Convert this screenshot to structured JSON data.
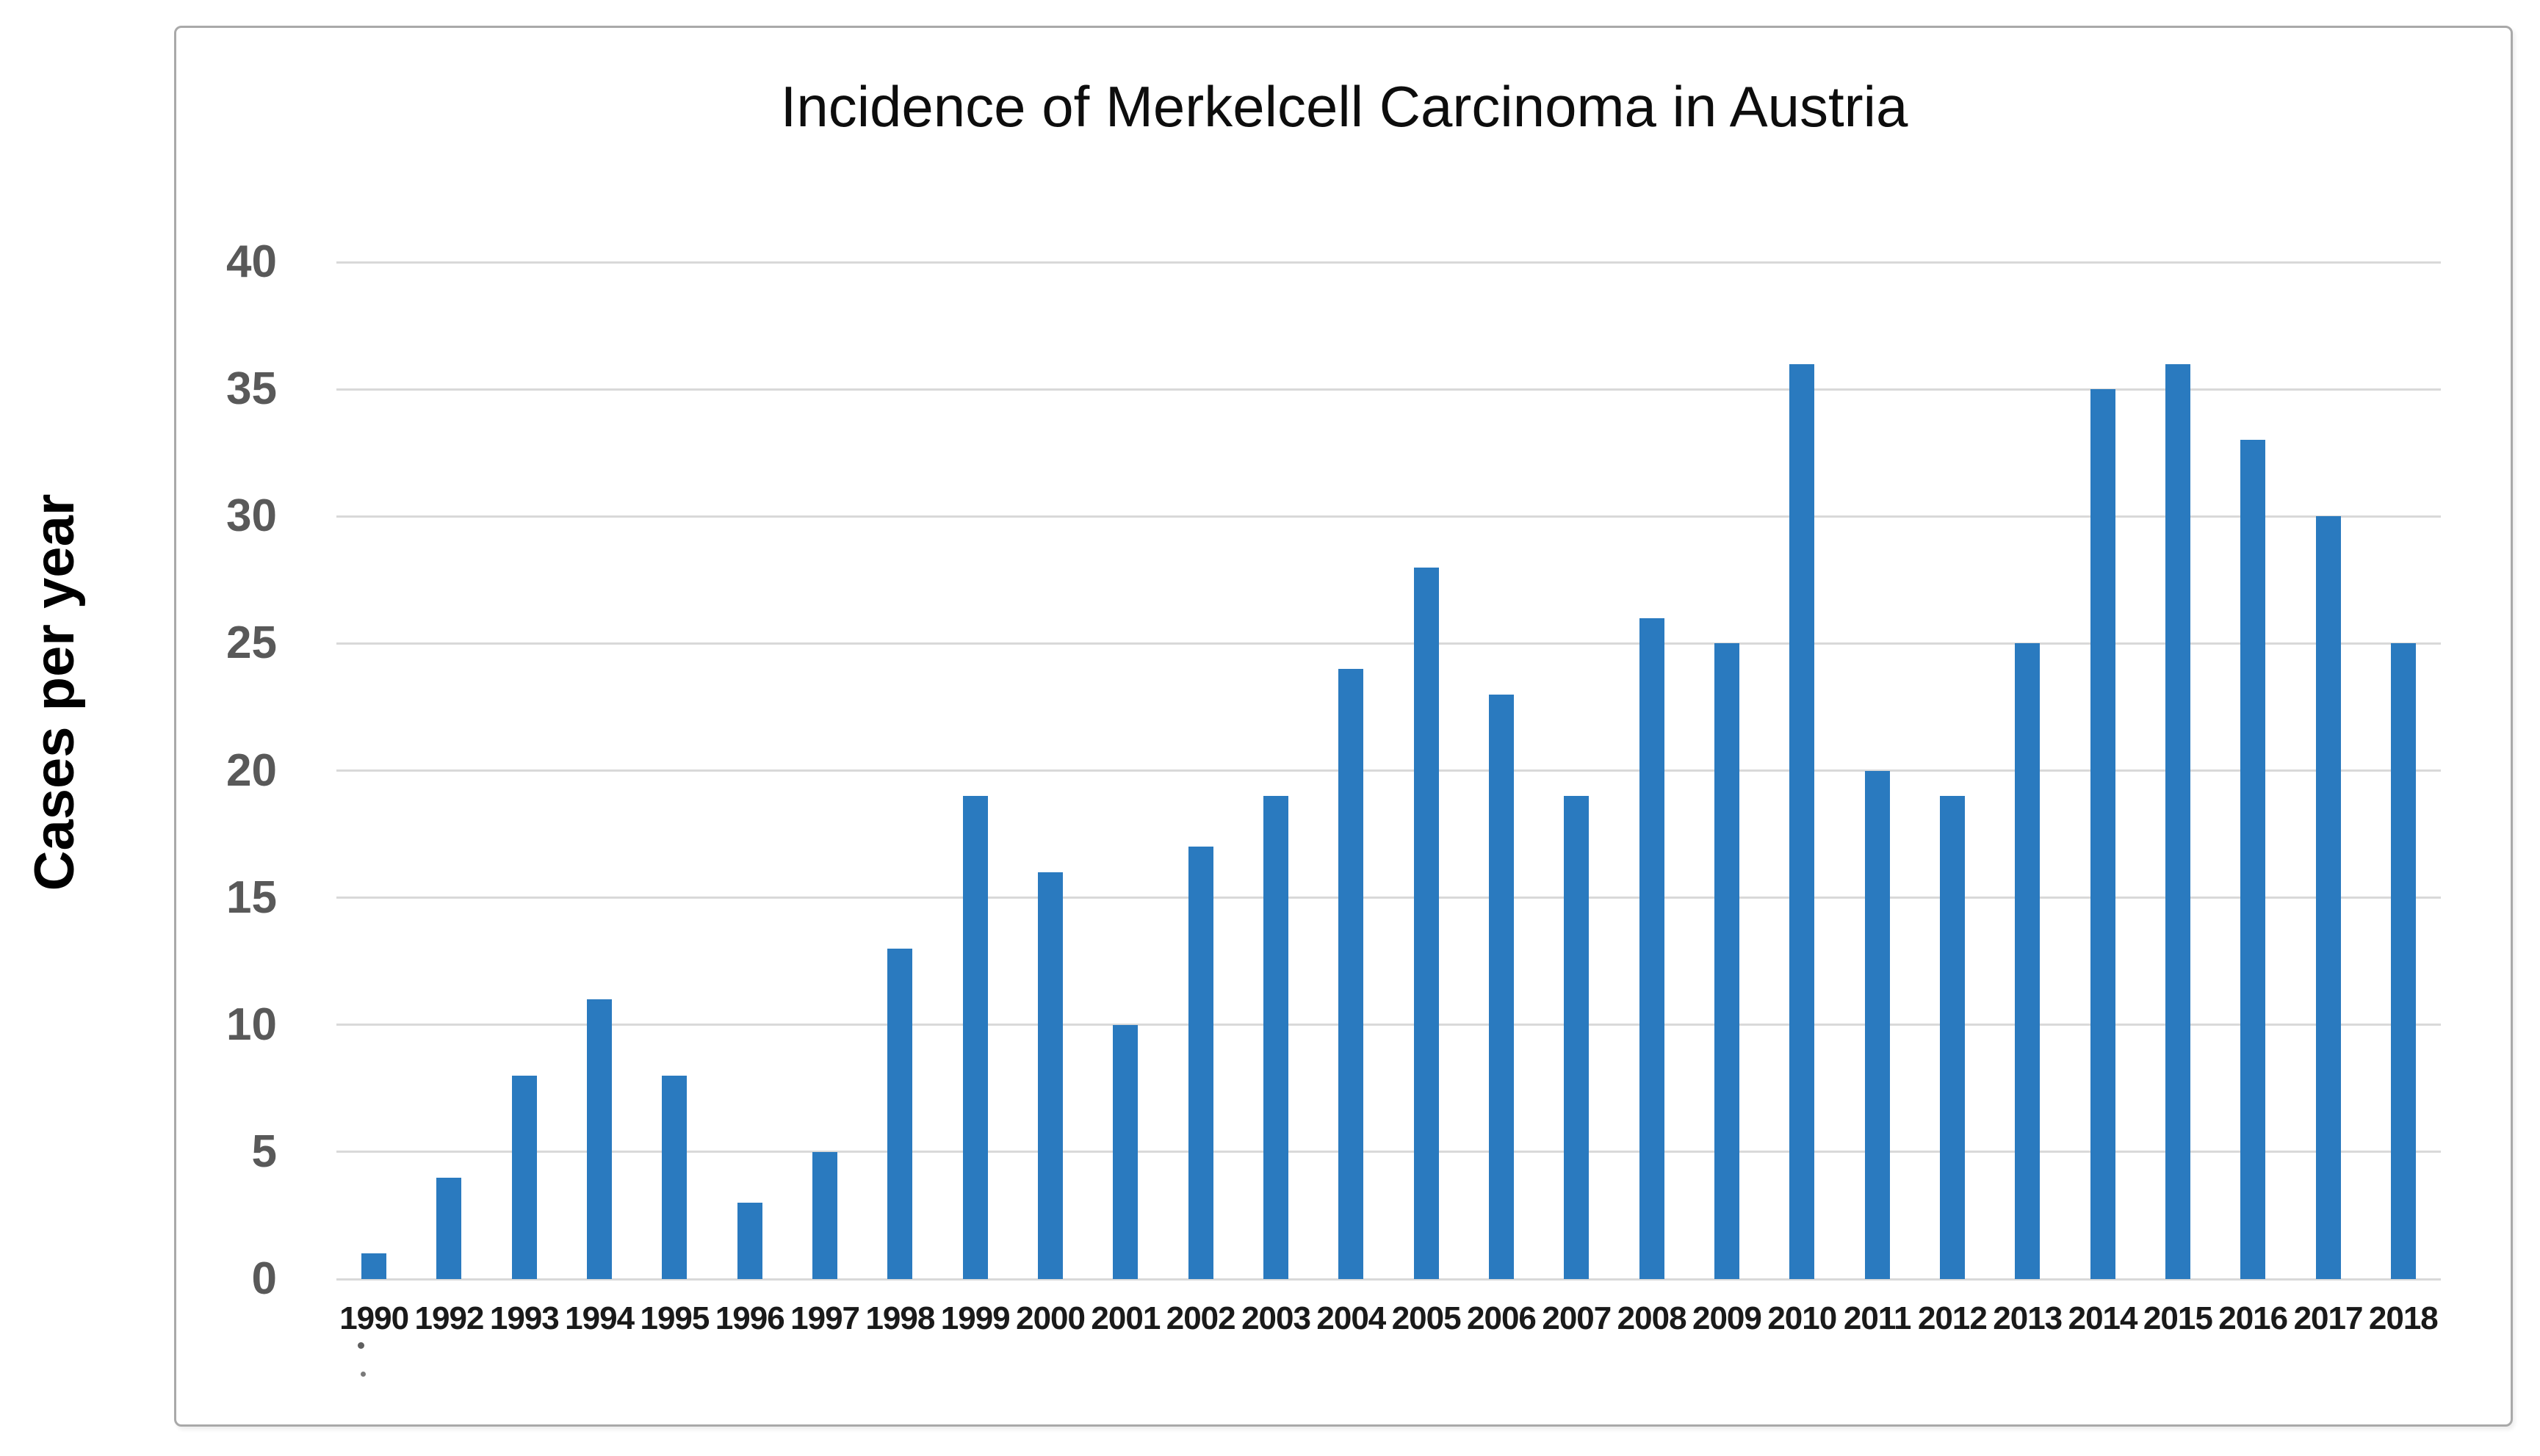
{
  "chart_data": {
    "type": "bar",
    "title": "Incidence of Merkelcell Carcinoma in Austria",
    "ylabel": "Cases per year",
    "xlabel": "",
    "categories": [
      "1990",
      "1992",
      "1993",
      "1994",
      "1995",
      "1996",
      "1997",
      "1998",
      "1999",
      "2000",
      "2001",
      "2002",
      "2003",
      "2004",
      "2005",
      "2006",
      "2007",
      "2008",
      "2009",
      "2010",
      "2011",
      "2012",
      "2013",
      "2014",
      "2015",
      "2016",
      "2017",
      "2018"
    ],
    "values": [
      1,
      4,
      8,
      11,
      8,
      3,
      5,
      13,
      19,
      16,
      10,
      17,
      19,
      24,
      28,
      23,
      19,
      26,
      25,
      36,
      20,
      19,
      25,
      35,
      36,
      33,
      30,
      25
    ],
    "ylim": [
      0,
      40
    ],
    "yticks": [
      0,
      5,
      10,
      15,
      20,
      25,
      30,
      35,
      40
    ],
    "grid": "horizontal",
    "legend": "none",
    "colors": {
      "bar": "#2a7abf",
      "gridline": "#d9d9d9",
      "frame_border": "#a9a9a9",
      "ytick_text": "#595959",
      "xtick_text": "#1a1a1a",
      "title_text": "#0d0d0d",
      "background": "#ffffff"
    }
  }
}
